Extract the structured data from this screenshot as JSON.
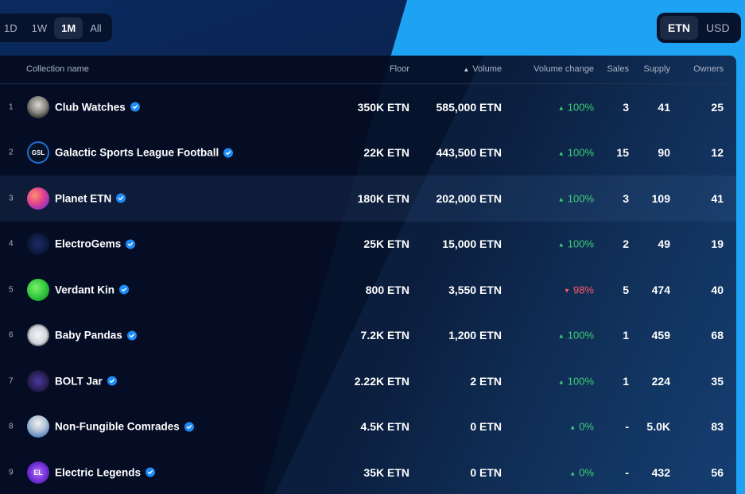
{
  "time_filter": {
    "options": [
      "1D",
      "1W",
      "1M",
      "All"
    ],
    "selected": "1M"
  },
  "currency_toggle": {
    "options": [
      "ETN",
      "USD"
    ],
    "selected": "ETN"
  },
  "table": {
    "headers": {
      "name": "Collection name",
      "floor": "Floor",
      "volume": "Volume",
      "volume_change": "Volume change",
      "sales": "Sales",
      "supply": "Supply",
      "owners": "Owners"
    },
    "sort_icon": "sort-up-icon",
    "rows": [
      {
        "rank": "1",
        "avatar": "",
        "name": "Club Watches",
        "floor": "350K ETN",
        "volume": "585,000 ETN",
        "change": "100%",
        "dir": "up",
        "sales": "3",
        "supply": "41",
        "owners": "25"
      },
      {
        "rank": "2",
        "avatar": "GSL",
        "name": "Galactic Sports League Football",
        "floor": "22K ETN",
        "volume": "443,500 ETN",
        "change": "100%",
        "dir": "up",
        "sales": "15",
        "supply": "90",
        "owners": "12"
      },
      {
        "rank": "3",
        "avatar": "",
        "name": "Planet ETN",
        "floor": "180K ETN",
        "volume": "202,000 ETN",
        "change": "100%",
        "dir": "up",
        "sales": "3",
        "supply": "109",
        "owners": "41"
      },
      {
        "rank": "4",
        "avatar": "",
        "name": "ElectroGems",
        "floor": "25K ETN",
        "volume": "15,000 ETN",
        "change": "100%",
        "dir": "up",
        "sales": "2",
        "supply": "49",
        "owners": "19"
      },
      {
        "rank": "5",
        "avatar": "",
        "name": "Verdant Kin",
        "floor": "800 ETN",
        "volume": "3,550 ETN",
        "change": "98%",
        "dir": "down",
        "sales": "5",
        "supply": "474",
        "owners": "40"
      },
      {
        "rank": "6",
        "avatar": "",
        "name": "Baby Pandas",
        "floor": "7.2K ETN",
        "volume": "1,200 ETN",
        "change": "100%",
        "dir": "up",
        "sales": "1",
        "supply": "459",
        "owners": "68"
      },
      {
        "rank": "7",
        "avatar": "",
        "name": "BOLT Jar",
        "floor": "2.22K ETN",
        "volume": "2 ETN",
        "change": "100%",
        "dir": "up",
        "sales": "1",
        "supply": "224",
        "owners": "35"
      },
      {
        "rank": "8",
        "avatar": "",
        "name": "Non-Fungible Comrades",
        "floor": "4.5K ETN",
        "volume": "0 ETN",
        "change": "0%",
        "dir": "up",
        "sales": "-",
        "supply": "5.0K",
        "owners": "83"
      },
      {
        "rank": "9",
        "avatar": "EL",
        "name": "Electric Legends",
        "floor": "35K ETN",
        "volume": "0 ETN",
        "change": "0%",
        "dir": "up",
        "sales": "-",
        "supply": "432",
        "owners": "56"
      }
    ]
  },
  "colors": {
    "positive": "#3fcf7a",
    "negative": "#ff5a6a",
    "verified": "#1d8cf8"
  }
}
